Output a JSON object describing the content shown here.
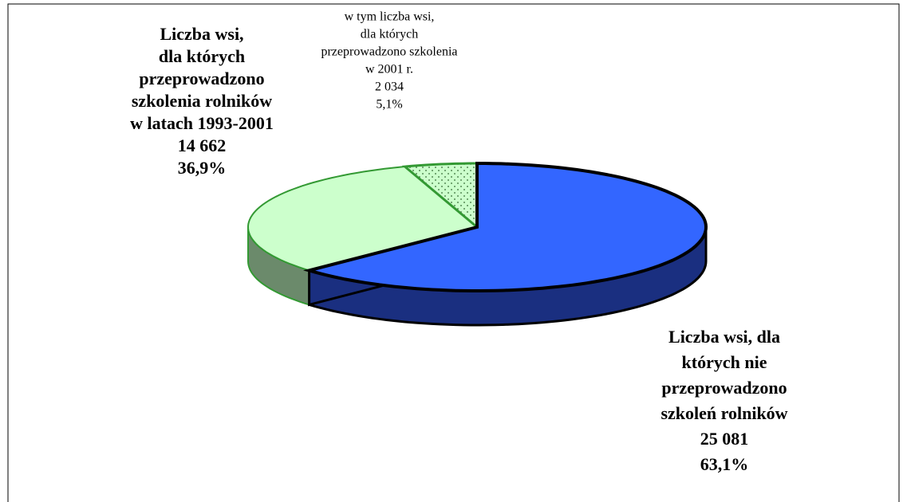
{
  "chart_data": {
    "type": "pie",
    "categories": [
      [
        "Liczba wsi, dla",
        "których nie",
        "przeprowadzono",
        "szkoleń rolników"
      ],
      [
        "Liczba wsi,",
        "dla których",
        "przeprowadzono",
        "szkolenia rolników",
        "w latach 1993-2001"
      ],
      [
        "w tym liczba wsi,",
        "dla których",
        "przeprowadzono szkolenia",
        "w 2001 r."
      ]
    ],
    "values": [
      25081,
      14662,
      2034
    ],
    "value_labels": [
      "25 081",
      "14 662",
      "2 034"
    ],
    "percents": [
      63.1,
      36.9,
      5.1
    ],
    "percent_labels": [
      "63,1%",
      "36,9%",
      "5,1%"
    ],
    "colors": [
      "#3366ff",
      "#ccffcc",
      "#ccffcc"
    ]
  }
}
